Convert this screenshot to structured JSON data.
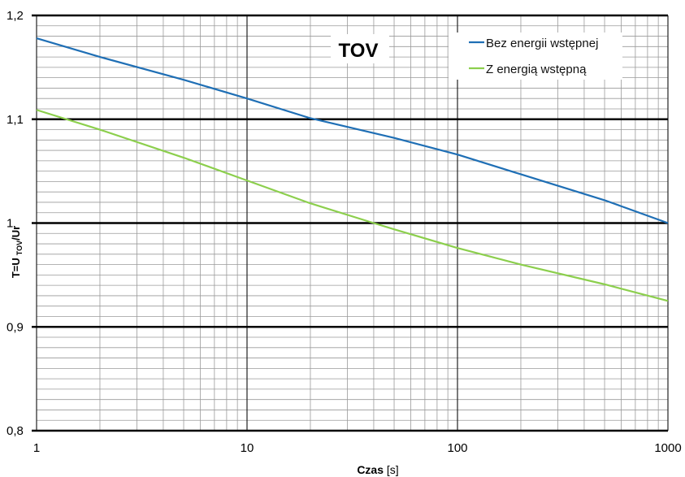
{
  "chart_data": {
    "type": "line",
    "title": "TOV",
    "xlabel_bold": "Czas",
    "xlabel_unit": "[s]",
    "ylabel_prefix": "T=U",
    "ylabel_subscript": "TOV",
    "ylabel_suffix": "/Ur",
    "x_scale": "log",
    "xlim": [
      1,
      1000
    ],
    "ylim": [
      0.8,
      1.2
    ],
    "x_ticks": [
      1,
      10,
      100,
      1000
    ],
    "x_tick_labels": [
      "1",
      "10",
      "100",
      "1000"
    ],
    "y_ticks": [
      0.8,
      0.9,
      1.0,
      1.1,
      1.2
    ],
    "y_tick_labels": [
      "0,8",
      "0,9",
      "1",
      "1,1",
      "1,2"
    ],
    "grid": "major and minor",
    "legend_position": "top-right",
    "series": [
      {
        "name": "Bez energii wstępnej",
        "color": "#1f6fb5",
        "x": [
          1,
          2,
          5,
          10,
          20,
          50,
          100,
          200,
          500,
          1000
        ],
        "y": [
          1.178,
          1.16,
          1.138,
          1.12,
          1.101,
          1.082,
          1.066,
          1.047,
          1.022,
          1.0
        ]
      },
      {
        "name": "Z energią wstępną",
        "color": "#8ccf4d",
        "x": [
          1,
          2,
          5,
          10,
          20,
          40,
          50,
          100,
          200,
          500,
          1000
        ],
        "y": [
          1.109,
          1.09,
          1.063,
          1.041,
          1.019,
          1.0,
          0.994,
          0.976,
          0.96,
          0.941,
          0.925
        ]
      }
    ]
  }
}
